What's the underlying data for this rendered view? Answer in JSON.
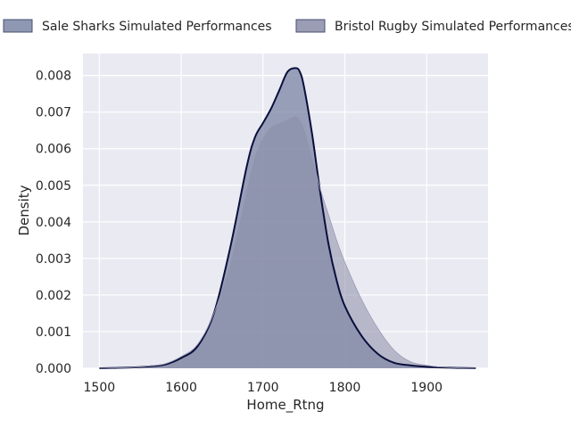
{
  "chart_data": {
    "type": "area",
    "xlabel": "Home_Rtng",
    "ylabel": "Density",
    "xlim": [
      1480,
      1975
    ],
    "ylim": [
      0,
      0.0086
    ],
    "x_ticks": [
      1500,
      1600,
      1700,
      1800,
      1900
    ],
    "x_tick_labels": [
      "1500",
      "1600",
      "1700",
      "1800",
      "1900"
    ],
    "y_ticks": [
      0,
      0.001,
      0.002,
      0.003,
      0.004,
      0.005,
      0.006,
      0.007,
      0.008
    ],
    "y_tick_labels": [
      "0.000",
      "0.001",
      "0.002",
      "0.003",
      "0.004",
      "0.005",
      "0.006",
      "0.007",
      "0.008"
    ],
    "grid": true,
    "legend_position": "top",
    "series": [
      {
        "name": "Sale Sharks Simulated Performances",
        "color": "#0a0f3c",
        "fill": "#7b86a4",
        "x": [
          1500,
          1540,
          1560,
          1580,
          1600,
          1620,
          1640,
          1660,
          1680,
          1690,
          1700,
          1710,
          1720,
          1730,
          1740,
          1745,
          1750,
          1760,
          1770,
          1780,
          1790,
          1800,
          1820,
          1840,
          1860,
          1880,
          1900,
          1920,
          1940,
          1960
        ],
        "values": [
          0,
          2e-05,
          5e-05,
          0.0001,
          0.00028,
          0.0006,
          0.0015,
          0.0033,
          0.0055,
          0.0063,
          0.0067,
          0.0071,
          0.0076,
          0.0081,
          0.0082,
          0.0081,
          0.0077,
          0.0064,
          0.0048,
          0.0034,
          0.0024,
          0.0017,
          0.0009,
          0.0004,
          0.00015,
          8e-05,
          4e-05,
          2e-05,
          1e-05,
          0
        ]
      },
      {
        "name": "Bristol Rugby Simulated Performances",
        "color": "#9a9cb4",
        "fill": "#8a8ca8",
        "x": [
          1500,
          1540,
          1560,
          1580,
          1600,
          1620,
          1640,
          1660,
          1680,
          1690,
          1700,
          1710,
          1720,
          1730,
          1740,
          1745,
          1750,
          1760,
          1770,
          1780,
          1790,
          1800,
          1820,
          1840,
          1860,
          1880,
          1900,
          1920,
          1940,
          1960
        ],
        "values": [
          0,
          2e-05,
          6e-05,
          0.00012,
          0.00032,
          0.00065,
          0.0015,
          0.0029,
          0.0049,
          0.0058,
          0.0063,
          0.0066,
          0.0067,
          0.0068,
          0.0069,
          0.0068,
          0.0066,
          0.0058,
          0.0049,
          0.0042,
          0.0035,
          0.0029,
          0.0019,
          0.0011,
          0.0005,
          0.00018,
          8e-05,
          3e-05,
          1e-05,
          0
        ]
      }
    ]
  }
}
